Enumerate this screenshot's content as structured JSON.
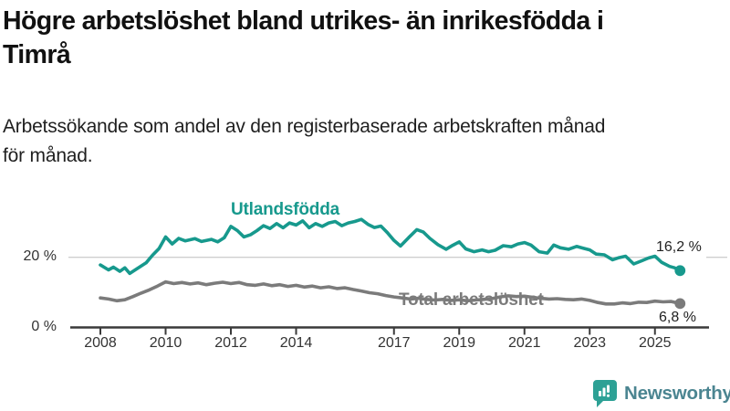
{
  "header": {
    "title_lines": [
      "Högre arbetslöshet bland utrikes- än inrikesfödda i",
      "Timrå"
    ],
    "subtitle_lines": [
      "Arbetssökande som andel av den registerbaserade arbetskraften månad",
      "för månad."
    ]
  },
  "chart_data": {
    "type": "line",
    "title": "Högre arbetslöshet bland utrikes- än inrikesfödda i Timrå",
    "subtitle": "Arbetssökande som andel av den registerbaserade arbetskraften månad för månad.",
    "unit": "%",
    "x_axis": {
      "ticks": [
        2008,
        2010,
        2012,
        2014,
        2017,
        2019,
        2021,
        2023,
        2025
      ],
      "range": [
        2007.1,
        2026.6
      ],
      "grid": false
    },
    "y_axis": {
      "labels": [
        {
          "value": 20,
          "text": "20 %"
        },
        {
          "value": 0,
          "text": "0 %"
        }
      ],
      "range": [
        0,
        36
      ],
      "gridline_values": [
        20
      ]
    },
    "legend_position": "inline-labels",
    "series": [
      {
        "name": "Utlandsfödda",
        "color": "#17998d",
        "end_label": "16,2 %",
        "end_value": 16.2,
        "points": [
          [
            2008.0,
            17.8
          ],
          [
            2008.25,
            16.4
          ],
          [
            2008.4,
            17.2
          ],
          [
            2008.6,
            16.0
          ],
          [
            2008.75,
            17.0
          ],
          [
            2008.9,
            15.4
          ],
          [
            2009.1,
            16.6
          ],
          [
            2009.4,
            18.4
          ],
          [
            2009.6,
            20.6
          ],
          [
            2009.8,
            22.5
          ],
          [
            2010.0,
            25.8
          ],
          [
            2010.2,
            23.8
          ],
          [
            2010.4,
            25.4
          ],
          [
            2010.6,
            24.7
          ],
          [
            2010.9,
            25.3
          ],
          [
            2011.1,
            24.5
          ],
          [
            2011.4,
            25.1
          ],
          [
            2011.6,
            24.4
          ],
          [
            2011.8,
            25.6
          ],
          [
            2012.0,
            28.8
          ],
          [
            2012.2,
            27.6
          ],
          [
            2012.4,
            25.8
          ],
          [
            2012.6,
            26.4
          ],
          [
            2012.8,
            27.6
          ],
          [
            2013.0,
            29.0
          ],
          [
            2013.2,
            28.2
          ],
          [
            2013.4,
            29.6
          ],
          [
            2013.6,
            28.4
          ],
          [
            2013.8,
            29.8
          ],
          [
            2014.0,
            29.2
          ],
          [
            2014.2,
            30.4
          ],
          [
            2014.4,
            28.4
          ],
          [
            2014.6,
            29.6
          ],
          [
            2014.8,
            28.8
          ],
          [
            2015.0,
            29.8
          ],
          [
            2015.2,
            30.2
          ],
          [
            2015.4,
            29.0
          ],
          [
            2015.6,
            29.8
          ],
          [
            2015.8,
            30.2
          ],
          [
            2016.0,
            30.8
          ],
          [
            2016.2,
            29.4
          ],
          [
            2016.4,
            28.5
          ],
          [
            2016.6,
            28.9
          ],
          [
            2016.8,
            27.0
          ],
          [
            2017.0,
            24.8
          ],
          [
            2017.2,
            23.2
          ],
          [
            2017.45,
            25.6
          ],
          [
            2017.7,
            27.9
          ],
          [
            2017.9,
            27.2
          ],
          [
            2018.1,
            25.4
          ],
          [
            2018.35,
            23.6
          ],
          [
            2018.6,
            22.3
          ],
          [
            2018.8,
            23.4
          ],
          [
            2019.0,
            24.4
          ],
          [
            2019.2,
            22.4
          ],
          [
            2019.45,
            21.6
          ],
          [
            2019.7,
            22.1
          ],
          [
            2019.9,
            21.6
          ],
          [
            2020.1,
            22.0
          ],
          [
            2020.35,
            23.3
          ],
          [
            2020.6,
            23.0
          ],
          [
            2020.8,
            23.8
          ],
          [
            2021.0,
            24.2
          ],
          [
            2021.2,
            23.5
          ],
          [
            2021.45,
            21.6
          ],
          [
            2021.7,
            21.2
          ],
          [
            2021.9,
            23.5
          ],
          [
            2022.1,
            22.7
          ],
          [
            2022.35,
            22.3
          ],
          [
            2022.6,
            23.1
          ],
          [
            2022.8,
            22.6
          ],
          [
            2023.0,
            22.1
          ],
          [
            2023.2,
            20.9
          ],
          [
            2023.45,
            20.7
          ],
          [
            2023.7,
            19.3
          ],
          [
            2023.9,
            19.9
          ],
          [
            2024.1,
            20.3
          ],
          [
            2024.35,
            18.1
          ],
          [
            2024.6,
            19.0
          ],
          [
            2024.8,
            19.8
          ],
          [
            2025.0,
            20.3
          ],
          [
            2025.2,
            18.6
          ],
          [
            2025.45,
            17.4
          ],
          [
            2025.6,
            17.0
          ],
          [
            2025.77,
            16.2
          ]
        ]
      },
      {
        "name": "Total arbetslöshet",
        "color": "#7b7b7b",
        "end_label": "6,8 %",
        "end_value": 6.8,
        "points": [
          [
            2008.0,
            8.4
          ],
          [
            2008.25,
            8.1
          ],
          [
            2008.5,
            7.6
          ],
          [
            2008.75,
            7.9
          ],
          [
            2009.0,
            8.8
          ],
          [
            2009.25,
            9.8
          ],
          [
            2009.5,
            10.7
          ],
          [
            2009.75,
            11.8
          ],
          [
            2010.0,
            13.0
          ],
          [
            2010.25,
            12.5
          ],
          [
            2010.5,
            12.8
          ],
          [
            2010.75,
            12.4
          ],
          [
            2011.0,
            12.7
          ],
          [
            2011.25,
            12.2
          ],
          [
            2011.5,
            12.6
          ],
          [
            2011.75,
            12.9
          ],
          [
            2012.0,
            12.5
          ],
          [
            2012.25,
            12.8
          ],
          [
            2012.5,
            12.2
          ],
          [
            2012.75,
            12.0
          ],
          [
            2013.0,
            12.4
          ],
          [
            2013.25,
            11.9
          ],
          [
            2013.5,
            12.2
          ],
          [
            2013.75,
            11.7
          ],
          [
            2014.0,
            12.0
          ],
          [
            2014.25,
            11.5
          ],
          [
            2014.5,
            11.8
          ],
          [
            2014.75,
            11.3
          ],
          [
            2015.0,
            11.6
          ],
          [
            2015.25,
            11.1
          ],
          [
            2015.5,
            11.3
          ],
          [
            2015.75,
            10.8
          ],
          [
            2016.0,
            10.4
          ],
          [
            2016.25,
            9.9
          ],
          [
            2016.5,
            9.6
          ],
          [
            2016.75,
            9.1
          ],
          [
            2017.0,
            8.7
          ],
          [
            2017.25,
            8.4
          ],
          [
            2017.5,
            8.1
          ],
          [
            2017.75,
            8.3
          ],
          [
            2018.0,
            8.0
          ],
          [
            2018.25,
            7.8
          ],
          [
            2018.5,
            8.0
          ],
          [
            2018.75,
            7.7
          ],
          [
            2019.0,
            7.9
          ],
          [
            2019.25,
            7.6
          ],
          [
            2019.5,
            7.8
          ],
          [
            2019.75,
            8.0
          ],
          [
            2020.0,
            8.2
          ],
          [
            2020.25,
            8.7
          ],
          [
            2020.5,
            9.0
          ],
          [
            2020.75,
            8.8
          ],
          [
            2021.0,
            8.9
          ],
          [
            2021.25,
            8.6
          ],
          [
            2021.5,
            8.3
          ],
          [
            2021.75,
            8.1
          ],
          [
            2022.0,
            8.2
          ],
          [
            2022.25,
            8.0
          ],
          [
            2022.5,
            7.9
          ],
          [
            2022.75,
            8.1
          ],
          [
            2023.0,
            7.7
          ],
          [
            2023.25,
            7.1
          ],
          [
            2023.5,
            6.7
          ],
          [
            2023.75,
            6.7
          ],
          [
            2024.0,
            7.0
          ],
          [
            2024.25,
            6.8
          ],
          [
            2024.5,
            7.2
          ],
          [
            2024.75,
            7.1
          ],
          [
            2025.0,
            7.5
          ],
          [
            2025.25,
            7.3
          ],
          [
            2025.5,
            7.4
          ],
          [
            2025.77,
            6.8
          ]
        ]
      }
    ]
  },
  "footer": {
    "brand": "Newsworthy",
    "brand_color": "#4b8591",
    "icon": "bar-chart-speech-bubble-icon",
    "icon_color": "#2da195"
  }
}
